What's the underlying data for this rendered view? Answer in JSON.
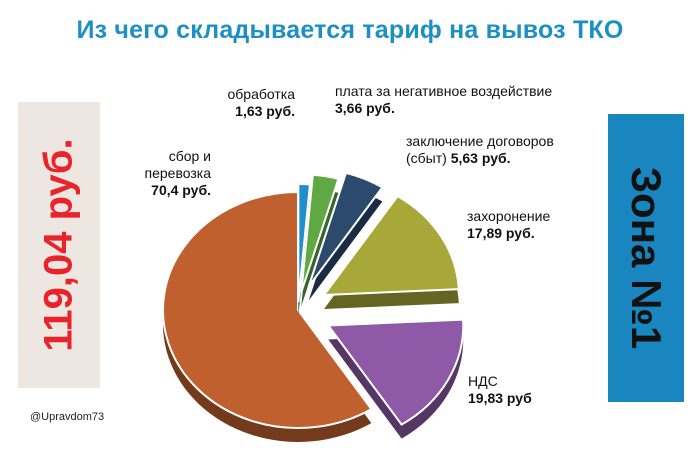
{
  "title": "Из чего складывается тариф на вывоз ТКО",
  "total_label": "119,04 руб.",
  "zone_label": "Зона №1",
  "handle": "@Upravdom73",
  "chart_data": {
    "type": "pie",
    "title": "Из чего складывается тариф на вывоз ТКО",
    "slices": [
      {
        "name_lines": [
          "сбор и",
          "перевозка"
        ],
        "value_text": "70,4 руб.",
        "value": 70.4,
        "color": "#c0602e"
      },
      {
        "name_lines": [
          "обработка"
        ],
        "value_text": "1,63 руб.",
        "value": 1.63,
        "color": "#1e8fcc"
      },
      {
        "name_lines": [
          "плата за негативное воздействие"
        ],
        "value_text": "3,66 руб.",
        "value": 3.66,
        "color": "#5fa843"
      },
      {
        "name_lines": [
          "заключение договоров",
          "(сбыт)"
        ],
        "value_text": "5,63 руб.",
        "value": 5.63,
        "color": "#2b4a6e"
      },
      {
        "name_lines": [
          "захоронение"
        ],
        "value_text": "17,89 руб.",
        "value": 17.89,
        "color": "#a8a83a"
      },
      {
        "name_lines": [
          "НДС"
        ],
        "value_text": "19,83 руб",
        "value": 19.83,
        "color": "#8e5aa8"
      }
    ]
  }
}
